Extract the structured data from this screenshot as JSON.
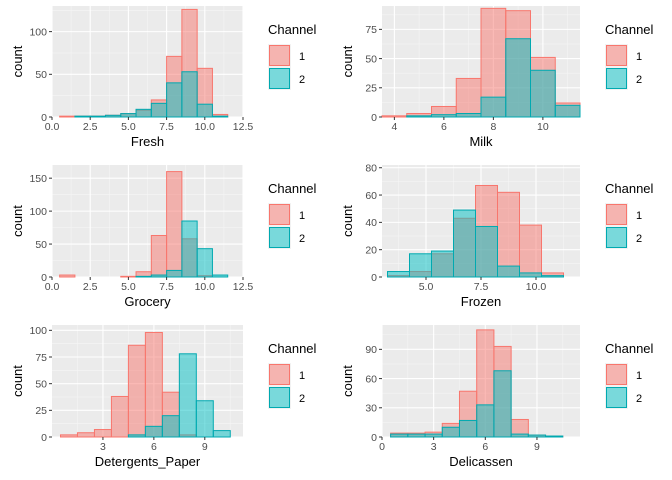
{
  "figure": {
    "legend_title": "Channel",
    "legend_labels": [
      "1",
      "2"
    ],
    "ylabel": "count",
    "colors": {
      "panel_bg": "#EBEBEB",
      "grid_major": "#FFFFFF",
      "grid_minor": "#F5F5F5",
      "ch1_fill": "#F8766D",
      "ch1_stroke": "#F8766D",
      "ch2_fill": "#00BFC4",
      "ch2_stroke": "#00A9B0",
      "tick_text": "#4D4D4D",
      "label_text": "#000000"
    }
  },
  "chart_data": [
    {
      "type": "bar",
      "title": "",
      "xlabel": "Fresh",
      "ylabel": "count",
      "xlim": [
        0,
        12.5
      ],
      "ylim": [
        0,
        130
      ],
      "xticks": [
        0.0,
        2.5,
        5.0,
        7.5,
        10.0,
        12.5
      ],
      "xtick_labels": [
        "0.0",
        "2.5",
        "5.0",
        "7.5",
        "10.0",
        "12.5"
      ],
      "yticks": [
        0,
        50,
        100
      ],
      "ytick_labels": [
        "0",
        "50",
        "100"
      ],
      "bin_edges": [
        0.5,
        1.5,
        2.5,
        3.5,
        4.5,
        5.5,
        6.5,
        7.5,
        8.5,
        9.5,
        10.5,
        11.5,
        12.5
      ],
      "series": [
        {
          "name": "1",
          "values": [
            1,
            1,
            1,
            2,
            4,
            8,
            20,
            71,
            126,
            57,
            3,
            0
          ]
        },
        {
          "name": "2",
          "values": [
            0,
            1,
            1,
            2,
            4,
            9,
            16,
            40,
            53,
            15,
            1,
            0
          ]
        }
      ]
    },
    {
      "type": "bar",
      "title": "",
      "xlabel": "Milk",
      "ylabel": "count",
      "xlim": [
        3.5,
        11.5
      ],
      "ylim": [
        0,
        95
      ],
      "xticks": [
        4,
        6,
        8,
        10
      ],
      "xtick_labels": [
        "4",
        "6",
        "8",
        "10"
      ],
      "yticks": [
        0,
        25,
        50,
        75
      ],
      "ytick_labels": [
        "0",
        "25",
        "50",
        "75"
      ],
      "bin_edges": [
        3.5,
        4.5,
        5.5,
        6.5,
        7.5,
        8.5,
        9.5,
        10.5,
        11.5
      ],
      "series": [
        {
          "name": "1",
          "values": [
            1,
            3,
            9,
            33,
            93,
            91,
            51,
            12
          ]
        },
        {
          "name": "2",
          "values": [
            0,
            1,
            2,
            3,
            17,
            67,
            40,
            10
          ]
        }
      ]
    },
    {
      "type": "bar",
      "title": "",
      "xlabel": "Grocery",
      "ylabel": "count",
      "xlim": [
        0,
        12.5
      ],
      "ylim": [
        0,
        170
      ],
      "xticks": [
        0.0,
        2.5,
        5.0,
        7.5,
        10.0,
        12.5
      ],
      "xtick_labels": [
        "0.0",
        "2.5",
        "5.0",
        "7.5",
        "10.0",
        "12.5"
      ],
      "yticks": [
        0,
        50,
        100,
        150
      ],
      "ytick_labels": [
        "0",
        "50",
        "100",
        "150"
      ],
      "bin_edges": [
        0.5,
        1.5,
        2.5,
        3.5,
        4.5,
        5.5,
        6.5,
        7.5,
        8.5,
        9.5,
        10.5,
        11.5,
        12.5
      ],
      "series": [
        {
          "name": "1",
          "values": [
            3,
            0,
            0,
            0,
            1,
            8,
            63,
            160,
            58,
            2,
            0,
            0
          ]
        },
        {
          "name": "2",
          "values": [
            0,
            0,
            0,
            0,
            0,
            1,
            3,
            10,
            85,
            43,
            3,
            0
          ]
        }
      ]
    },
    {
      "type": "bar",
      "title": "",
      "xlabel": "Frozen",
      "ylabel": "count",
      "xlim": [
        3,
        12
      ],
      "ylim": [
        0,
        82
      ],
      "xticks": [
        5.0,
        7.5,
        10.0
      ],
      "xtick_labels": [
        "5.0",
        "7.5",
        "10.0"
      ],
      "yticks": [
        0,
        20,
        40,
        60,
        80
      ],
      "ytick_labels": [
        "0",
        "20",
        "40",
        "60",
        "80"
      ],
      "bin_edges": [
        3.25,
        4.25,
        5.25,
        6.25,
        7.25,
        8.25,
        9.25,
        10.25,
        11.25
      ],
      "series": [
        {
          "name": "1",
          "values": [
            1,
            4,
            17,
            43,
            67,
            62,
            38,
            3
          ]
        },
        {
          "name": "2",
          "values": [
            4,
            17,
            19,
            49,
            37,
            8,
            3,
            1
          ]
        }
      ]
    },
    {
      "type": "bar",
      "title": "",
      "xlabel": "Detergents_Paper",
      "ylabel": "count",
      "xlim": [
        0,
        11.25
      ],
      "ylim": [
        0,
        105
      ],
      "xticks": [
        3,
        6,
        9
      ],
      "xtick_labels": [
        "3",
        "6",
        "9"
      ],
      "yticks": [
        0,
        25,
        50,
        75,
        100
      ],
      "ytick_labels": [
        "0",
        "25",
        "50",
        "75",
        "100"
      ],
      "bin_edges": [
        0.5,
        1.5,
        2.5,
        3.5,
        4.5,
        5.5,
        6.5,
        7.5,
        8.5,
        9.5,
        10.5
      ],
      "series": [
        {
          "name": "1",
          "values": [
            2,
            4,
            7,
            38,
            86,
            98,
            42,
            2,
            0,
            0
          ]
        },
        {
          "name": "2",
          "values": [
            0,
            0,
            0,
            0,
            2,
            10,
            20,
            78,
            34,
            6
          ]
        }
      ]
    },
    {
      "type": "bar",
      "title": "",
      "xlabel": "Delicassen",
      "ylabel": "count",
      "xlim": [
        0,
        11.5
      ],
      "ylim": [
        0,
        115
      ],
      "xticks": [
        0,
        3,
        6,
        9
      ],
      "xtick_labels": [
        "0",
        "3",
        "6",
        "9"
      ],
      "yticks": [
        0,
        30,
        60,
        90
      ],
      "ytick_labels": [
        "0",
        "30",
        "60",
        "90"
      ],
      "bin_edges": [
        0.5,
        1.5,
        2.5,
        3.5,
        4.5,
        5.5,
        6.5,
        7.5,
        8.5,
        9.5,
        10.5,
        11.5
      ],
      "series": [
        {
          "name": "1",
          "values": [
            4,
            4,
            5,
            14,
            47,
            110,
            93,
            18,
            2,
            1,
            0
          ]
        },
        {
          "name": "2",
          "values": [
            3,
            3,
            3,
            10,
            17,
            33,
            68,
            3,
            2,
            1,
            0
          ]
        }
      ]
    }
  ]
}
